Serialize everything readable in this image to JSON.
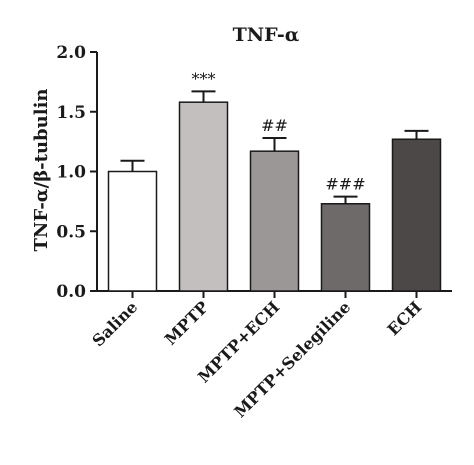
{
  "chart_data": {
    "type": "bar",
    "title": "TNF-α",
    "ylabel": "TNF-α/β-tubulin",
    "xlabel": "",
    "categories": [
      "Saline",
      "MPTP",
      "MPTP+ECH",
      "MPTP+Selegiline",
      "ECH"
    ],
    "values": [
      1.0,
      1.58,
      1.17,
      0.73,
      1.27
    ],
    "errors": [
      0.09,
      0.09,
      0.11,
      0.06,
      0.07
    ],
    "annotations": [
      "",
      "***",
      "##",
      "###",
      ""
    ],
    "ylim": [
      0.0,
      2.0
    ],
    "yticks": [
      "0.0",
      "0.5",
      "1.0",
      "1.5",
      "2.0"
    ],
    "bar_colors": [
      "#ffffff",
      "#c4bfbf",
      "#9c9797",
      "#6e6a6a",
      "#4c4848"
    ],
    "bar_outline": "#1a1a1a",
    "grid": false,
    "legend": "none"
  }
}
